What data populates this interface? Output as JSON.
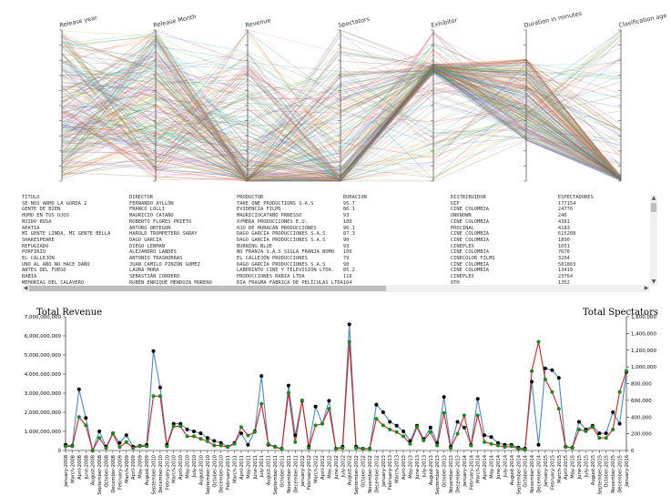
{
  "parallel_coords": {
    "axes": [
      "Release year",
      "Release Month",
      "Revenue",
      "Spectators",
      "Exhibitor",
      "Duration in minutes",
      "Clasification age"
    ],
    "colors": [
      "#1f77b4",
      "#ff7f0e",
      "#2ca02c",
      "#d62728",
      "#9467bd",
      "#8c564b",
      "#e377c2",
      "#7f7f7f",
      "#bcbd22",
      "#17becf"
    ]
  },
  "film_table": {
    "columns": [
      "TITULO",
      "DIRECTOR",
      "PRODUCTOR",
      "DURACION",
      "DISTRIBUIDOR",
      "ESPECTADORES"
    ],
    "rows": [
      [
        "SE NOS ARMO LA GORDA 2",
        "FERNANDO AYLLÓN",
        "TAKE ONE PRODUCTIONS S.A.S",
        "95.7",
        "UIP",
        "177154"
      ],
      [
        "GENTE DE BIEN",
        "FRANCO LOLLI",
        "EVIDENCIA FILMS",
        "86.1",
        "CINE COLOMBIA",
        "24776"
      ],
      [
        "HUMO EN TUS OJOS",
        "MAURICIO CATAÑO",
        "MAURICIOCATAÑO PRNESSO",
        "93",
        "UNKNOWN",
        "246"
      ],
      [
        "RUIDO ROSA",
        "ROBERTO FLORES PRIETO",
        "XYMERA PRODUCCIONES E.U.",
        "100",
        "CINE COLOMBIA",
        "4381"
      ],
      [
        "APATIA",
        "ARTURO ORTEGON",
        "OJO DE HURACÁN PRODUCCIONES",
        "96.1",
        "PROCINAL",
        "4183"
      ],
      [
        "MI GENTE LINDA, MI GENTE BELLA",
        "HAROLD TROMPETERO SARAY",
        "DAGO GARCÍA PRODUCCIONES S.A.S",
        "87.3",
        "CINE COLOMBIA",
        "615208"
      ],
      [
        "SHAKESPEARE",
        "DAGO GARCÍA",
        "DAGO GARCÍA PRODUCCIONES S.A.S",
        "90",
        "CINE COLOMBIA",
        "1890"
      ],
      [
        "REFUGIADO",
        "DIEGO LERMAN",
        "BURNING BLUE",
        "93",
        "CINEPLEX",
        "1651"
      ],
      [
        "PORFIRIO",
        "ALEJANDRO LANDES",
        "NO FRANJA S.A.S SIGLA FRANJA NOMO",
        "106",
        "CINE COLOMBIA",
        "7676"
      ],
      [
        "EL CALLEJÓN",
        "ANTONIO TRASHORRAS",
        "EL CALLEJÓN PRODUCCIONES",
        "79",
        "CINECOLOR FILMS",
        "3204"
      ],
      [
        "UNO AL AÑO NO HACE DAÑO",
        "JUAN CAMILO PINZÓN GOMEZ",
        "DAGO GARCÍA PRODUCCIONES S.A.S",
        "90",
        "CINE COLOMBIA",
        "581803"
      ],
      [
        "ANTES DEL FUEGO",
        "LAURA MORA",
        "LABERINTO CINE Y TELEVISIÓN LTDA.",
        "85.2",
        "CINE COLOMBIA",
        "13419"
      ],
      [
        "RABIA",
        "SEBASTIÁN CORDERO",
        "PRODUCCIONES RABIA LTDA",
        "110",
        "CINEPLEX",
        "23764"
      ],
      [
        "MEMORIAS DEL CALAVERO",
        "RUBÉN ENRIQUE MENDOZA MORENO",
        "DIA FRAGMA FÁBRICA DE PELÍCULAS LTDA",
        "104",
        "OTH",
        "1352"
      ]
    ]
  },
  "chart_data": {
    "type": "line",
    "title_left": "Total Revenue",
    "title_right": "Total Spectators",
    "categories": [
      "January-2008",
      "March-2008",
      "April-2008",
      "June-2008",
      "August-2008",
      "September-2008",
      "October-2008",
      "December-2008",
      "February-2009",
      "March-2009",
      "April-2009",
      "May-2009",
      "August-2009",
      "September-2010",
      "December-2010",
      "February-2010",
      "March-2010",
      "April-2010",
      "May-2010",
      "July-2010",
      "August-2010",
      "September-2010",
      "October-2010",
      "December-2010",
      "February-2011",
      "March-2011",
      "April-2011",
      "May-2011",
      "June-2011",
      "July-2011",
      "August-2011",
      "September-2011",
      "October-2011",
      "November-2011",
      "December-2011",
      "January-2012",
      "February-2012",
      "March-2012",
      "April-2012",
      "May-2012",
      "June-2012",
      "July-2012",
      "August-2012",
      "September-2012",
      "October-2012",
      "November-2012",
      "December-2012",
      "January-2013",
      "February-2013",
      "March-2013",
      "April-2013",
      "May-2013",
      "June-2013",
      "July-2013",
      "August-2013",
      "September-2013",
      "October-2013",
      "November-2013",
      "December-2013",
      "January-2014",
      "February-2014",
      "March-2014",
      "April-2014",
      "May-2014",
      "June-2014",
      "July-2014",
      "August-2014",
      "September-2014",
      "October-2014",
      "November-2014",
      "December-2014",
      "January-2015",
      "February-2015",
      "March-2015",
      "April-2015",
      "May-2015",
      "June-2015",
      "July-2015",
      "August-2015",
      "September-2015",
      "October-2015",
      "November-2015",
      "December-2015",
      "January-2016"
    ],
    "series": [
      {
        "name": "Total Revenue",
        "axis": "left",
        "color": "#4a8ac4",
        "values": [
          300000000,
          250000000,
          3200000000,
          1700000000,
          0,
          1000000000,
          200000000,
          900000000,
          400000000,
          800000000,
          200000000,
          250000000,
          300000000,
          5200000000,
          3300000000,
          300000000,
          1400000000,
          1400000000,
          1100000000,
          1000000000,
          900000000,
          650000000,
          500000000,
          400000000,
          200000000,
          400000000,
          900000000,
          300000000,
          1000000000,
          3900000000,
          300000000,
          200000000,
          100000000,
          3400000000,
          800000000,
          2600000000,
          200000000,
          2300000000,
          1400000000,
          2600000000,
          100000000,
          200000000,
          6600000000,
          200000000,
          100000000,
          100000000,
          2400000000,
          2000000000,
          1500000000,
          1300000000,
          1000000000,
          500000000,
          1300000000,
          600000000,
          1200000000,
          400000000,
          2800000000,
          200000000,
          1500000000,
          1200000000,
          300000000,
          2700000000,
          800000000,
          700000000,
          400000000,
          300000000,
          300000000,
          150000000,
          100000000,
          3600000000,
          300000000,
          4300000000,
          4200000000,
          3800000000,
          200000000,
          150000000,
          1500000000,
          1100000000,
          1300000000,
          900000000,
          900000000,
          2000000000,
          1400000000,
          4100000000
        ]
      },
      {
        "name": "Total Spectators",
        "axis": "right",
        "color": "#d62020",
        "values": [
          50000,
          50000,
          400000,
          300000,
          0,
          150000,
          30000,
          200000,
          40000,
          100000,
          30000,
          50000,
          50000,
          650000,
          650000,
          50000,
          290000,
          290000,
          170000,
          170000,
          140000,
          110000,
          60000,
          60000,
          40000,
          80000,
          280000,
          180000,
          220000,
          560000,
          80000,
          40000,
          20000,
          690000,
          100000,
          600000,
          30000,
          300000,
          320000,
          500000,
          20000,
          30000,
          1300000,
          30000,
          20000,
          20000,
          380000,
          300000,
          250000,
          220000,
          170000,
          80000,
          280000,
          120000,
          220000,
          60000,
          450000,
          30000,
          200000,
          420000,
          60000,
          420000,
          100000,
          80000,
          60000,
          40000,
          50000,
          20000,
          10000,
          950000,
          1300000,
          850000,
          700000,
          500000,
          40000,
          30000,
          250000,
          230000,
          280000,
          150000,
          150000,
          250000,
          700000,
          950000
        ]
      }
    ],
    "yleft": {
      "ylim": [
        0,
        7000000000
      ],
      "ticks": [
        0,
        1000000000,
        2000000000,
        3000000000,
        4000000000,
        5000000000,
        6000000000,
        7000000000
      ],
      "tick_labels": [
        "0",
        "1,000,000,000",
        "2,000,000,000",
        "3,000,000,000",
        "4,000,000,000",
        "5,000,000,000",
        "6,000,000,000",
        "7,000,000,000"
      ]
    },
    "yright": {
      "ylim": [
        0,
        1600000
      ],
      "ticks": [
        0,
        200000,
        400000,
        600000,
        800000,
        1000000,
        1200000,
        1400000,
        1600000
      ],
      "tick_labels": [
        "0",
        "200,000",
        "400,000",
        "600,000",
        "800,000",
        "1,000,000",
        "1,200,000",
        "1,400,000",
        "1,600,000"
      ]
    },
    "grid": false
  }
}
